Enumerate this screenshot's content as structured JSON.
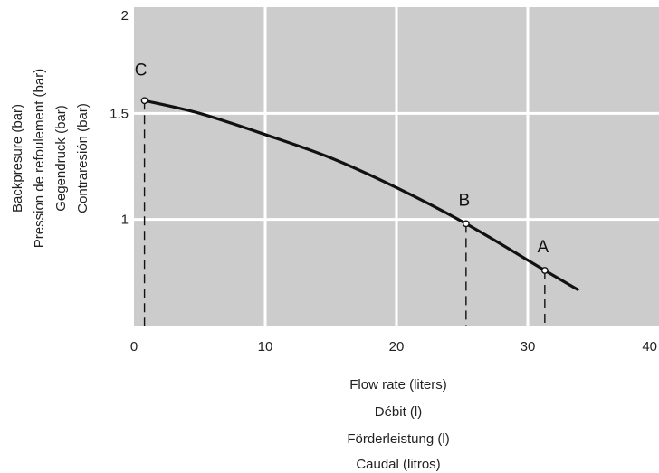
{
  "chart_data": {
    "type": "line",
    "title": "",
    "xlabel_lines": [
      "Flow rate (liters)",
      "Débit (l)",
      "Förderleistung (l)",
      "Caudal (litros)"
    ],
    "ylabel_lines": [
      "Backpresure (bar)",
      "Pression de refoulement (bar)",
      "Gegendruck (bar)",
      "Contraresión (bar)"
    ],
    "xlim": [
      0,
      40
    ],
    "ylim": [
      0.5,
      2
    ],
    "x_ticks": [
      0,
      10,
      20,
      30,
      40
    ],
    "x_tick_labels": [
      "0",
      "10",
      "20",
      "30",
      "40"
    ],
    "y_ticks": [
      1,
      1.5,
      2
    ],
    "y_tick_labels": [
      "1",
      "1.5",
      "2"
    ],
    "grid": true,
    "background": "#cccccc",
    "grid_color": "#ffffff",
    "line_color": "#111111",
    "series": [
      {
        "x": [
          0.8,
          5,
          10,
          15,
          20,
          25.3,
          31.3,
          33.8
        ],
        "y": [
          1.56,
          1.5,
          1.4,
          1.29,
          1.15,
          0.98,
          0.76,
          0.67
        ]
      }
    ],
    "points": [
      {
        "label": "C",
        "x": 0.8,
        "y": 1.56
      },
      {
        "label": "B",
        "x": 25.3,
        "y": 0.98
      },
      {
        "label": "A",
        "x": 31.3,
        "y": 0.76
      }
    ]
  }
}
